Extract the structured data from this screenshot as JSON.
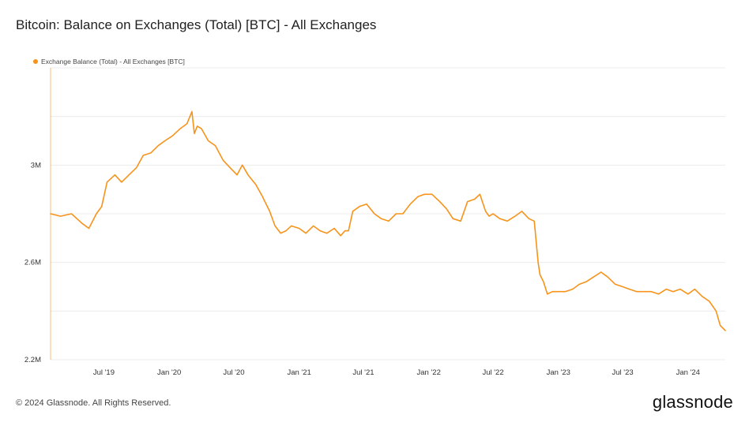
{
  "header": {
    "title": "Bitcoin: Balance on Exchanges (Total) [BTC] - All Exchanges"
  },
  "footer": {
    "copyright": "© 2024 Glassnode. All Rights Reserved.",
    "logo": "glassnode"
  },
  "colors": {
    "series": "#f7931a",
    "grid": "#ececec",
    "axis": "#f7931a"
  },
  "chart_data": {
    "type": "line",
    "title": "Bitcoin: Balance on Exchanges (Total) [BTC] - All Exchanges",
    "xlabel": "",
    "ylabel": "",
    "legend_placement": "top-left",
    "grid": true,
    "ylim": [
      2200000,
      3400000
    ],
    "xlim": [
      "2019-02-01",
      "2024-04-15"
    ],
    "y_ticks": [
      2200000,
      2600000,
      3000000
    ],
    "y_tick_labels": [
      "2.2M",
      "2.6M",
      "3M"
    ],
    "x_ticks": [
      "2019-07-01",
      "2020-01-01",
      "2020-07-01",
      "2021-01-01",
      "2021-07-01",
      "2022-01-01",
      "2022-07-01",
      "2023-01-01",
      "2023-07-01",
      "2024-01-01"
    ],
    "x_tick_labels": [
      "Jul '19",
      "Jan '20",
      "Jul '20",
      "Jan '21",
      "Jul '21",
      "Jan '22",
      "Jul '22",
      "Jan '23",
      "Jul '23",
      "Jan '24"
    ],
    "series": [
      {
        "name": "Exchange Balance (Total) - All Exchanges [BTC]",
        "x": [
          "2019-02-01",
          "2019-03-01",
          "2019-04-01",
          "2019-05-01",
          "2019-05-20",
          "2019-06-10",
          "2019-06-25",
          "2019-07-10",
          "2019-08-01",
          "2019-08-20",
          "2019-09-10",
          "2019-10-01",
          "2019-10-20",
          "2019-11-10",
          "2019-12-01",
          "2019-12-20",
          "2020-01-10",
          "2020-02-01",
          "2020-02-20",
          "2020-03-05",
          "2020-03-12",
          "2020-03-20",
          "2020-04-01",
          "2020-04-20",
          "2020-05-10",
          "2020-06-01",
          "2020-06-20",
          "2020-07-10",
          "2020-07-25",
          "2020-08-10",
          "2020-09-01",
          "2020-09-20",
          "2020-10-10",
          "2020-10-25",
          "2020-11-10",
          "2020-11-25",
          "2020-12-10",
          "2021-01-01",
          "2021-01-20",
          "2021-02-10",
          "2021-03-01",
          "2021-03-20",
          "2021-04-10",
          "2021-04-28",
          "2021-05-10",
          "2021-05-20",
          "2021-06-01",
          "2021-06-20",
          "2021-07-10",
          "2021-08-01",
          "2021-08-20",
          "2021-09-10",
          "2021-10-01",
          "2021-10-20",
          "2021-11-10",
          "2021-12-01",
          "2021-12-20",
          "2022-01-10",
          "2022-02-01",
          "2022-02-20",
          "2022-03-10",
          "2022-04-01",
          "2022-04-20",
          "2022-05-10",
          "2022-05-25",
          "2022-06-10",
          "2022-06-20",
          "2022-07-01",
          "2022-07-20",
          "2022-08-10",
          "2022-09-01",
          "2022-09-20",
          "2022-10-10",
          "2022-10-25",
          "2022-11-05",
          "2022-11-10",
          "2022-11-20",
          "2022-12-01",
          "2022-12-15",
          "2023-01-01",
          "2023-01-20",
          "2023-02-10",
          "2023-03-01",
          "2023-03-20",
          "2023-04-10",
          "2023-05-01",
          "2023-05-20",
          "2023-06-10",
          "2023-07-01",
          "2023-07-20",
          "2023-08-10",
          "2023-09-01",
          "2023-09-20",
          "2023-10-10",
          "2023-11-01",
          "2023-11-20",
          "2023-12-10",
          "2024-01-01",
          "2024-01-20",
          "2024-02-10",
          "2024-03-01",
          "2024-03-20",
          "2024-04-01",
          "2024-04-15"
        ],
        "values": [
          2800000,
          2790000,
          2800000,
          2760000,
          2740000,
          2800000,
          2830000,
          2930000,
          2960000,
          2930000,
          2960000,
          2990000,
          3040000,
          3050000,
          3080000,
          3100000,
          3120000,
          3150000,
          3170000,
          3220000,
          3130000,
          3160000,
          3150000,
          3100000,
          3080000,
          3020000,
          2990000,
          2960000,
          3000000,
          2960000,
          2920000,
          2870000,
          2810000,
          2750000,
          2720000,
          2730000,
          2750000,
          2740000,
          2720000,
          2750000,
          2730000,
          2720000,
          2740000,
          2710000,
          2730000,
          2730000,
          2810000,
          2830000,
          2840000,
          2800000,
          2780000,
          2770000,
          2800000,
          2800000,
          2840000,
          2870000,
          2880000,
          2880000,
          2850000,
          2820000,
          2780000,
          2770000,
          2850000,
          2860000,
          2880000,
          2810000,
          2790000,
          2800000,
          2780000,
          2770000,
          2790000,
          2810000,
          2780000,
          2770000,
          2600000,
          2550000,
          2520000,
          2470000,
          2480000,
          2480000,
          2480000,
          2490000,
          2510000,
          2520000,
          2540000,
          2560000,
          2540000,
          2510000,
          2500000,
          2490000,
          2480000,
          2480000,
          2480000,
          2470000,
          2490000,
          2480000,
          2490000,
          2470000,
          2490000,
          2460000,
          2440000,
          2400000,
          2340000,
          2320000
        ]
      }
    ]
  }
}
